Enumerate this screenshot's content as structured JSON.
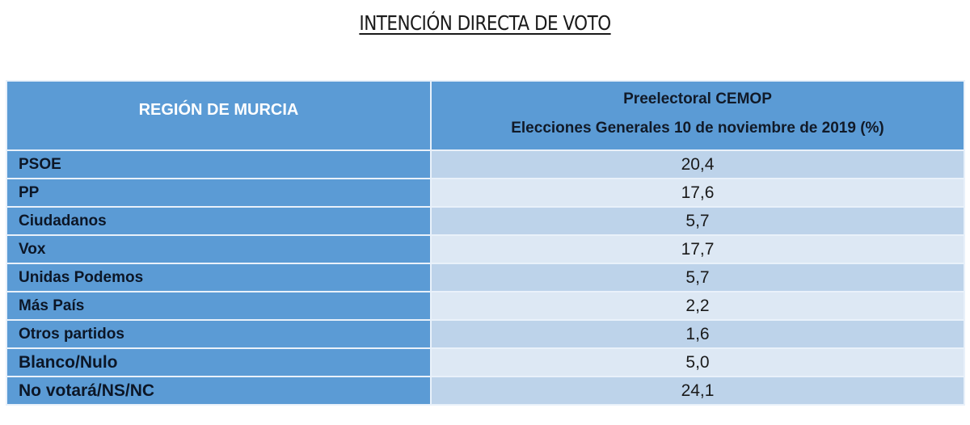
{
  "title": "INTENCIÓN DIRECTA DE VOTO",
  "table": {
    "header": {
      "region": "REGIÓN DE MURCIA",
      "line1": "Preelectoral CEMOP",
      "line2": "Elecciones Generales 10 de noviembre de 2019 (%)"
    },
    "rows": [
      {
        "party": "PSOE",
        "value": "20,4"
      },
      {
        "party": "PP",
        "value": "17,6"
      },
      {
        "party": "Ciudadanos",
        "value": "5,7"
      },
      {
        "party": "Vox",
        "value": "17,7"
      },
      {
        "party": "Unidas Podemos",
        "value": "5,7"
      },
      {
        "party": "Más País",
        "value": "2,2"
      },
      {
        "party": "Otros partidos",
        "value": "1,6"
      },
      {
        "party": "Blanco/Nulo",
        "value": "5,0"
      },
      {
        "party": "No votará/NS/NC",
        "value": "24,1"
      }
    ]
  },
  "colors": {
    "header_bg": "#5b9bd5",
    "row_odd_bg": "#bdd3ea",
    "row_even_bg": "#dde8f4",
    "grid_line": "#e9f1fa"
  },
  "chart_data": {
    "type": "table",
    "title": "INTENCIÓN DIRECTA DE VOTO",
    "columns": [
      "REGIÓN DE MURCIA",
      "Preelectoral CEMOP Elecciones Generales 10 de noviembre de 2019 (%)"
    ],
    "categories": [
      "PSOE",
      "PP",
      "Ciudadanos",
      "Vox",
      "Unidas Podemos",
      "Más País",
      "Otros partidos",
      "Blanco/Nulo",
      "No votará/NS/NC"
    ],
    "values": [
      20.4,
      17.6,
      5.7,
      17.7,
      5.7,
      2.2,
      1.6,
      5.0,
      24.1
    ]
  }
}
